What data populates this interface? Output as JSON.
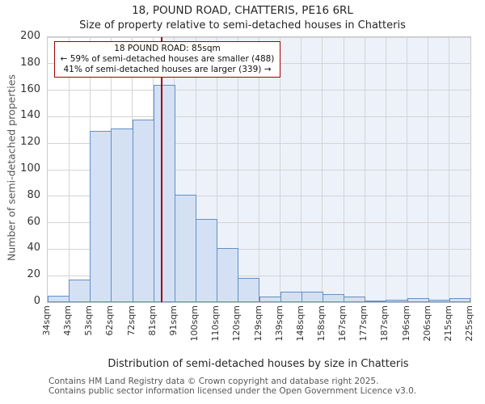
{
  "title": "18, POUND ROAD, CHATTERIS, PE16 6RL",
  "subtitle": "Size of property relative to semi-detached houses in Chatteris",
  "annotation": {
    "line1": "18 POUND ROAD: 85sqm",
    "line2": "← 59% of semi-detached houses are smaller (488)",
    "line3": "41% of semi-detached houses are larger (339) →"
  },
  "chart_data": {
    "type": "bar",
    "histogram": true,
    "title": "18, POUND ROAD, CHATTERIS, PE16 6RL",
    "subtitle": "Size of property relative to semi-detached houses in Chatteris",
    "xlabel": "Distribution of semi-detached houses by size in Chatteris",
    "ylabel": "Number of semi-detached properties",
    "bin_edge_labels": [
      "34sqm",
      "43sqm",
      "53sqm",
      "62sqm",
      "72sqm",
      "81sqm",
      "91sqm",
      "100sqm",
      "110sqm",
      "120sqm",
      "129sqm",
      "139sqm",
      "148sqm",
      "158sqm",
      "167sqm",
      "177sqm",
      "187sqm",
      "196sqm",
      "206sqm",
      "215sqm",
      "225sqm"
    ],
    "values": [
      5,
      17,
      129,
      131,
      138,
      164,
      81,
      63,
      41,
      18,
      4,
      8,
      8,
      6,
      4,
      1,
      2,
      3,
      2,
      3
    ],
    "ylim": [
      0,
      200
    ],
    "yticks": [
      0,
      20,
      40,
      60,
      80,
      100,
      120,
      140,
      160,
      180,
      200
    ],
    "grid": true,
    "legend": null,
    "marker": {
      "value_label": "85sqm",
      "bin_index": 5,
      "fraction_in_bin": 0.4,
      "color": "#a40000"
    },
    "colors": {
      "bar_fill": "#d4e0f3",
      "bar_border": "#6290c8",
      "grid": "#d4d4d4",
      "shade_right_of_marker": "#edf1fa"
    }
  },
  "footer": {
    "line1": "Contains HM Land Registry data © Crown copyright and database right 2025.",
    "line2": "Contains public sector information licensed under the Open Government Licence v3.0."
  }
}
